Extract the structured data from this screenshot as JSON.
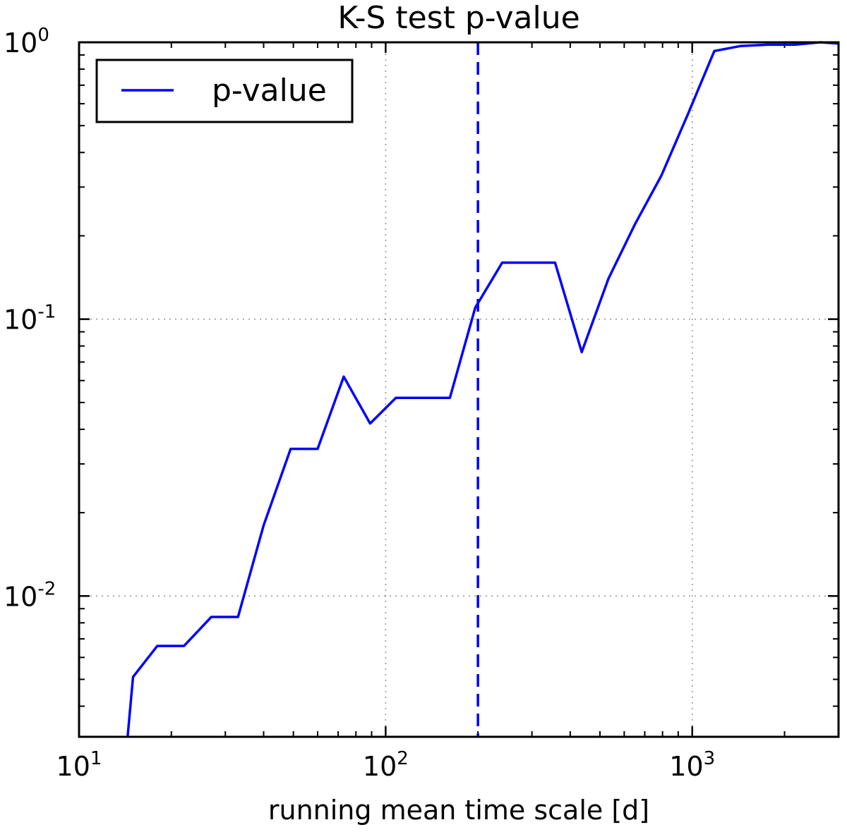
{
  "chart_data": {
    "type": "line",
    "title": "K-S test p-value",
    "xlabel": "running mean time scale [d]",
    "ylabel": "",
    "xscale": "log",
    "yscale": "log",
    "xlim": [
      10,
      3000
    ],
    "ylim": [
      0.0031,
      1.0
    ],
    "grid": true,
    "legend_position": "top-left",
    "x_ticks": [
      {
        "value": 10,
        "base": "10",
        "exp": "1"
      },
      {
        "value": 100,
        "base": "10",
        "exp": "2"
      },
      {
        "value": 1000,
        "base": "10",
        "exp": "3"
      }
    ],
    "y_ticks": [
      {
        "value": 0.01,
        "base": "10",
        "exp": "-2"
      },
      {
        "value": 0.1,
        "base": "10",
        "exp": "-1"
      },
      {
        "value": 1.0,
        "base": "10",
        "exp": "0"
      }
    ],
    "series": [
      {
        "name": "p-value",
        "color": "#0000ff",
        "style": "solid",
        "x": [
          14.4,
          15,
          18,
          22,
          27,
          33,
          40,
          49,
          60,
          73,
          89,
          108,
          132,
          162,
          196,
          240,
          293,
          357,
          436,
          533,
          650,
          793,
          968,
          1180,
          1440,
          1760,
          2150,
          2620,
          3000
        ],
        "y": [
          0.0031,
          0.0051,
          0.0066,
          0.0066,
          0.0084,
          0.0084,
          0.018,
          0.034,
          0.034,
          0.062,
          0.042,
          0.052,
          0.052,
          0.052,
          0.11,
          0.16,
          0.16,
          0.16,
          0.076,
          0.14,
          0.22,
          0.33,
          0.55,
          0.93,
          0.97,
          0.98,
          0.98,
          1.0,
          0.99
        ]
      }
    ],
    "reference_line": {
      "x": 200,
      "color": "#0000ff",
      "style": "dashed"
    }
  }
}
